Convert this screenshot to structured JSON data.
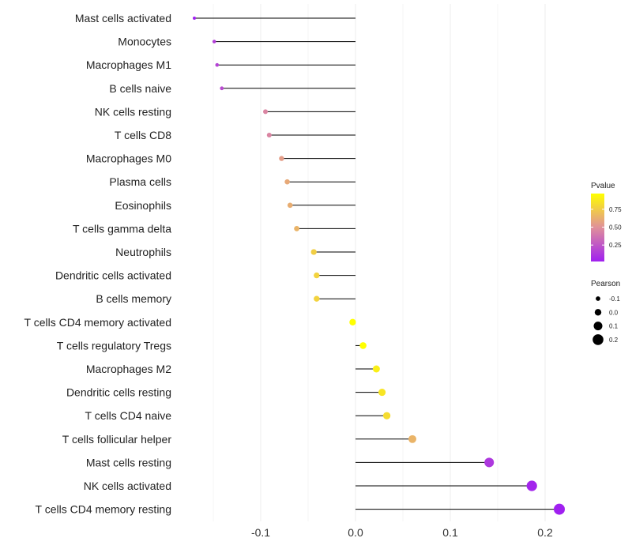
{
  "chart_data": {
    "type": "lollipop",
    "categories": [
      "Mast cells activated",
      "Monocytes",
      "Macrophages M1",
      "B cells naive",
      "NK cells resting",
      "T cells CD8",
      "Macrophages M0",
      "Plasma cells",
      "Eosinophils",
      "T cells gamma delta",
      "Neutrophils",
      "Dendritic cells activated",
      "B cells memory",
      "T cells CD4 memory activated",
      "T cells regulatory  Tregs ",
      "Macrophages M2",
      "Dendritic cells resting",
      "T cells CD4 naive",
      "T cells follicular helper",
      "Mast cells resting",
      "NK cells activated",
      "T cells CD4 memory resting"
    ],
    "values": [
      -0.17,
      -0.149,
      -0.146,
      -0.141,
      -0.095,
      -0.091,
      -0.078,
      -0.072,
      -0.069,
      -0.062,
      -0.044,
      -0.041,
      -0.041,
      -0.003,
      0.008,
      0.022,
      0.028,
      0.033,
      0.06,
      0.141,
      0.186,
      0.215
    ],
    "pvalues": [
      0.01,
      0.15,
      0.17,
      0.2,
      0.45,
      0.45,
      0.55,
      0.6,
      0.62,
      0.65,
      0.76,
      0.78,
      0.78,
      0.99,
      0.97,
      0.9,
      0.86,
      0.82,
      0.65,
      0.12,
      0.04,
      0.01
    ],
    "xlim": [
      -0.17,
      0.23
    ],
    "xticks": [
      -0.1,
      0.0,
      0.1,
      0.2
    ],
    "xtick_labels": [
      "-0.1",
      "0.0",
      "0.1",
      "0.2"
    ],
    "title": "",
    "xlabel": "",
    "ylabel": "",
    "grid": true,
    "legend_color": {
      "title": "Pvalue",
      "range": [
        0.02,
        0.97
      ],
      "ticks": [
        0.75,
        0.5,
        0.25
      ],
      "tick_labels": [
        "0.75",
        "0.50",
        "0.25"
      ],
      "low_color": "#a020f0",
      "mid_color": "#e0909a",
      "high_color": "#ffff00"
    },
    "legend_size": {
      "title": "Pearson",
      "values": [
        -0.1,
        0.0,
        0.1,
        0.2
      ],
      "labels": [
        "-0.1",
        "0.0",
        "0.1",
        "0.2"
      ],
      "color": "#000000"
    }
  }
}
